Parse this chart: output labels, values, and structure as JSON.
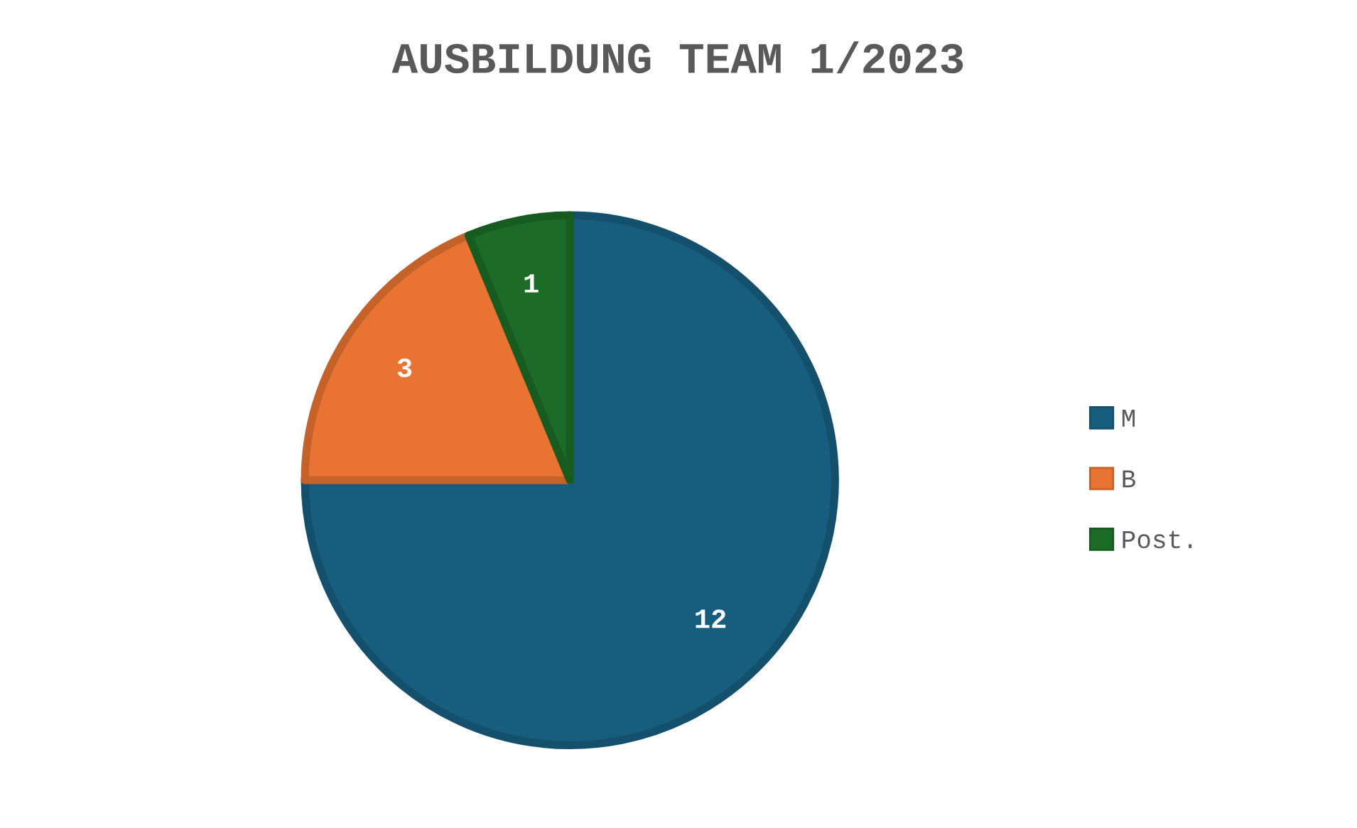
{
  "chart_data": {
    "type": "pie",
    "title": "AUSBILDUNG TEAM 1/2023",
    "categories": [
      "M",
      "B",
      "Post."
    ],
    "values": [
      12,
      3,
      1
    ],
    "colors": [
      "#175e7e",
      "#e87332",
      "#1c6b27"
    ],
    "data_labels": true,
    "legend": "right"
  }
}
